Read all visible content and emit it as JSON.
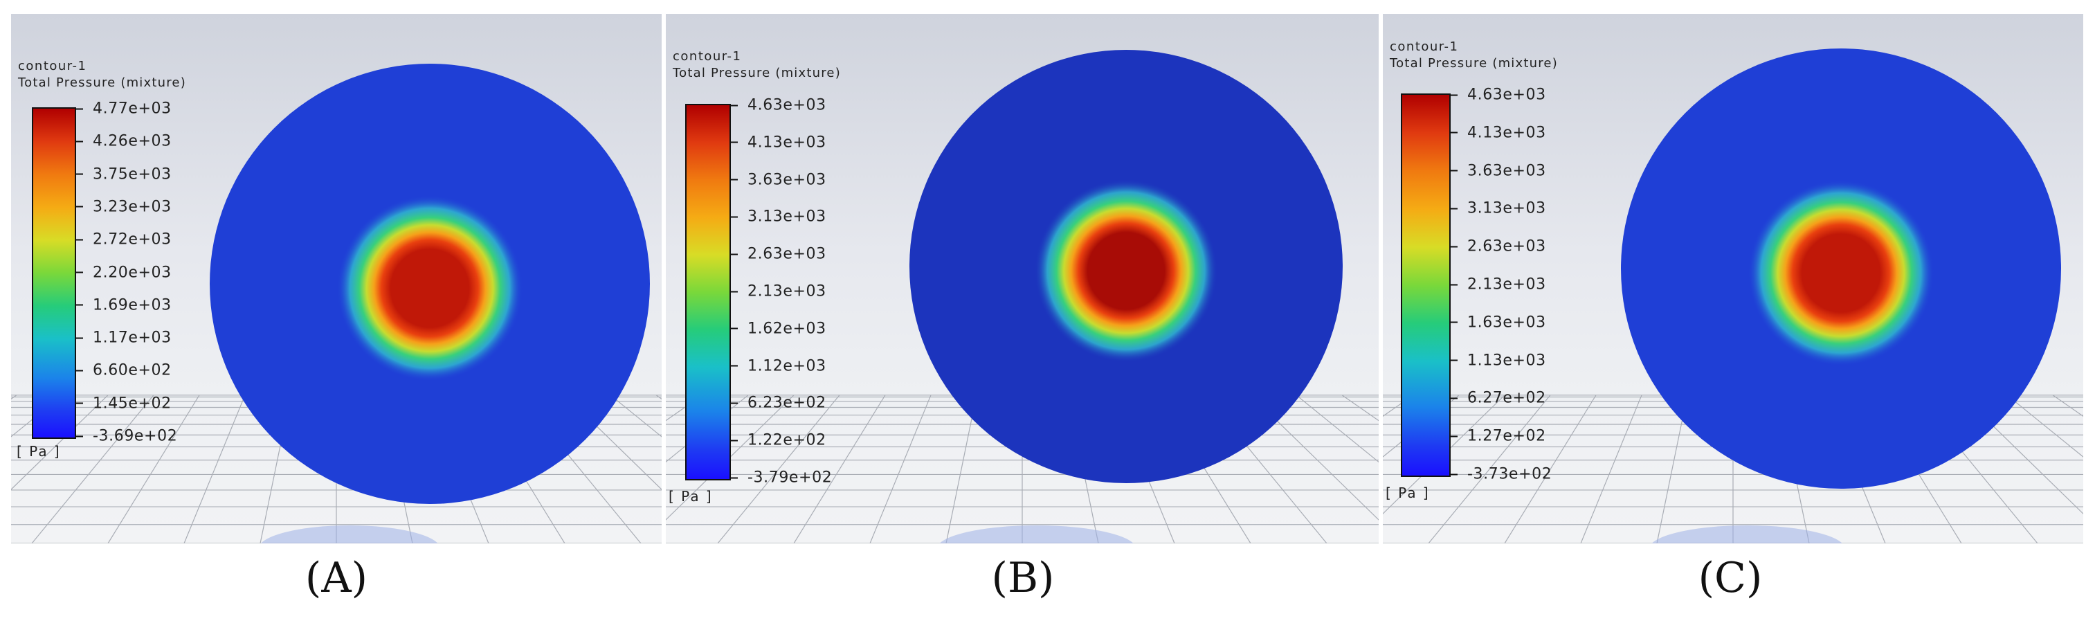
{
  "panels": [
    {
      "id": "A",
      "label": "(A)",
      "contour_name": "contour-1",
      "variable": "Total Pressure (mixture)",
      "unit": "[ Pa ]",
      "ticks": [
        "4.77e+03",
        "4.26e+03",
        "3.75e+03",
        "3.23e+03",
        "2.72e+03",
        "2.20e+03",
        "1.69e+03",
        "1.17e+03",
        "6.60e+02",
        "1.45e+02",
        "-3.69e+02"
      ],
      "disk_color": "#1f3fd6",
      "core_color": "#c01808"
    },
    {
      "id": "B",
      "label": "(B)",
      "contour_name": "contour-1",
      "variable": "Total Pressure (mixture)",
      "unit": "[ Pa ]",
      "ticks": [
        "4.63e+03",
        "4.13e+03",
        "3.63e+03",
        "3.13e+03",
        "2.63e+03",
        "2.13e+03",
        "1.62e+03",
        "1.12e+03",
        "6.23e+02",
        "1.22e+02",
        "-3.79e+02"
      ],
      "disk_color": "#1c34bd",
      "core_color": "#a80c06"
    },
    {
      "id": "C",
      "label": "(C)",
      "contour_name": "contour-1",
      "variable": "Total Pressure (mixture)",
      "unit": "[ Pa ]",
      "ticks": [
        "4.63e+03",
        "4.13e+03",
        "3.63e+03",
        "3.13e+03",
        "2.63e+03",
        "2.13e+03",
        "1.63e+03",
        "1.13e+03",
        "6.27e+02",
        "1.27e+02",
        "-3.73e+02"
      ],
      "disk_color": "#1f3fd6",
      "core_color": "#c01808"
    }
  ]
}
